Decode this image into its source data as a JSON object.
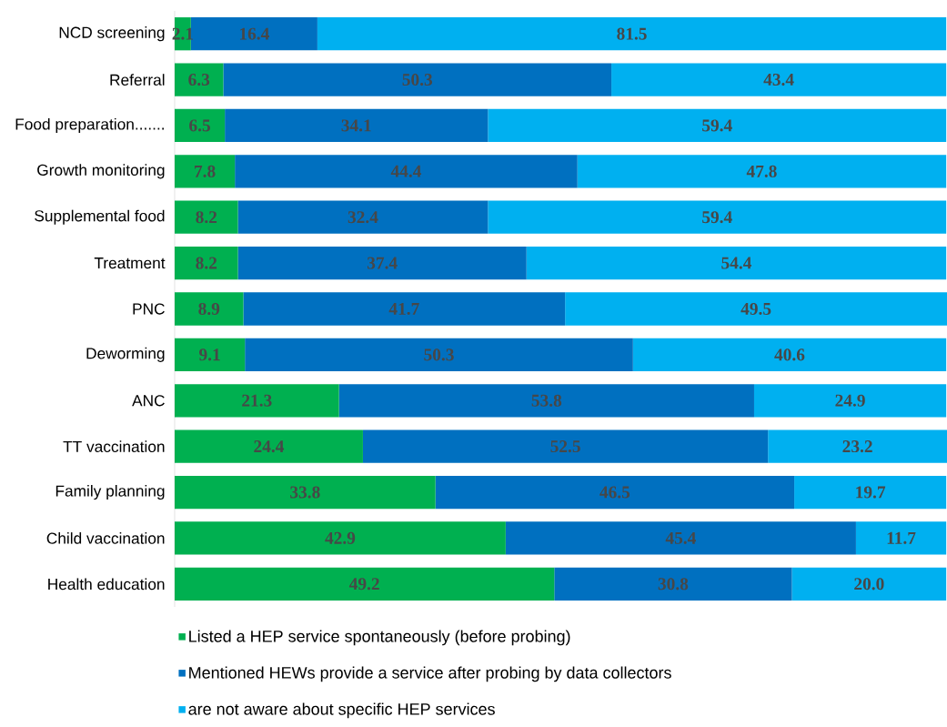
{
  "chart_data": {
    "type": "bar",
    "orientation": "horizontal",
    "stacked": true,
    "legend": "bottom",
    "categories": [
      "NCD screening",
      "Referral",
      "Food preparation.......",
      "Growth monitoring",
      "Supplemental food",
      "Treatment",
      "PNC",
      "Deworming",
      "ANC",
      "TT vaccination",
      "Family planning",
      "Child vaccination",
      "Health education"
    ],
    "series": [
      {
        "name": "Listed a HEP service spontaneously (before probing)",
        "color": "#00b050",
        "values": [
          2.1,
          6.3,
          6.5,
          7.8,
          8.2,
          8.2,
          8.9,
          9.1,
          21.3,
          24.4,
          33.8,
          42.9,
          49.2
        ],
        "value_labels": [
          "2.1",
          "6.3",
          "6.5",
          "7.8",
          "8.2",
          "8.2",
          "8.9",
          "9.1",
          "21.3",
          "24.4",
          "33.8",
          "42.9",
          "49.2"
        ]
      },
      {
        "name": "Mentioned HEWs provide a service after probing by data collectors",
        "color": "#0070c0",
        "values": [
          16.4,
          50.3,
          34.1,
          44.4,
          32.4,
          37.4,
          41.7,
          50.3,
          53.8,
          52.5,
          46.5,
          45.4,
          30.8
        ],
        "value_labels": [
          "16.4",
          "50.3",
          "34.1",
          "44.4",
          "32.4",
          "37.4",
          "41.7",
          "50.3",
          "53.8",
          "52.5",
          "46.5",
          "45.4",
          "30.8"
        ]
      },
      {
        "name": "are not aware about specific HEP services",
        "color": "#00b0f0",
        "values": [
          81.5,
          43.4,
          59.4,
          47.8,
          59.4,
          54.4,
          49.5,
          40.6,
          24.9,
          23.2,
          19.7,
          11.7,
          20.0
        ],
        "value_labels": [
          "81.5",
          "43.4",
          "59.4",
          "47.8",
          "59.4",
          "54.4",
          "49.5",
          "40.6",
          "24.9",
          "23.2",
          "19.7",
          "11.7",
          "20.0"
        ]
      }
    ]
  }
}
